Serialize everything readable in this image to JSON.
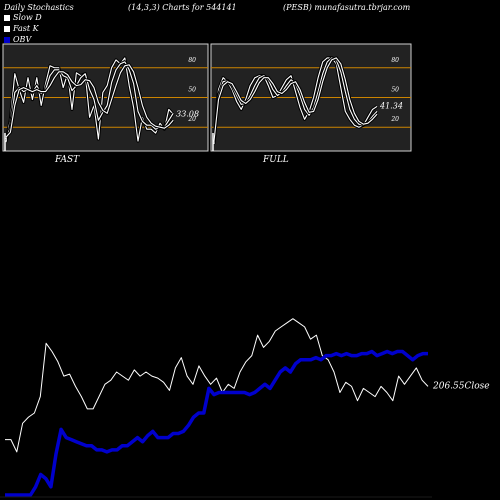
{
  "header": {
    "title": "Daily Stochastics",
    "params": "(14,3,3) Charts for 544141",
    "source": "(PESB) munafasutra.tbrjar.com"
  },
  "legend": [
    {
      "label": "Slow  D",
      "color": "#ffffff"
    },
    {
      "label": "Fast K",
      "color": "#ffffff"
    },
    {
      "label": "OBV",
      "color": "#0000cc"
    }
  ],
  "colors": {
    "grid": "#cc8400",
    "panel_bg": "#222222",
    "obv": "#0000cc",
    "price": "#ffffff"
  },
  "chart_data": [
    {
      "type": "line",
      "title": "FAST",
      "ylim": [
        0,
        100
      ],
      "yticks": [
        20,
        50,
        80
      ],
      "grid_levels": [
        20,
        50,
        80
      ],
      "last_value_label": "33.08",
      "series": [
        {
          "name": "Fast K",
          "values": [
            5,
            28,
            74,
            58,
            45,
            70,
            48,
            70,
            42,
            64,
            82,
            80,
            80,
            60,
            74,
            38,
            75,
            72,
            74,
            30,
            42,
            8,
            55,
            62,
            80,
            88,
            84,
            90,
            62,
            40,
            6,
            30,
            18,
            18,
            14,
            24,
            18,
            38,
            33
          ]
        },
        {
          "name": "Slow K",
          "values": [
            8,
            20,
            55,
            60,
            56,
            58,
            55,
            62,
            54,
            58,
            72,
            78,
            78,
            72,
            70,
            57,
            62,
            70,
            74,
            58,
            48,
            27,
            35,
            42,
            65,
            78,
            84,
            86,
            78,
            64,
            36,
            26,
            22,
            22,
            18,
            20,
            20,
            27,
            34
          ]
        },
        {
          "name": "Slow D",
          "values": [
            10,
            15,
            42,
            58,
            60,
            58,
            56,
            58,
            56,
            56,
            62,
            70,
            76,
            76,
            73,
            66,
            62,
            63,
            68,
            67,
            60,
            45,
            37,
            34,
            48,
            62,
            75,
            82,
            83,
            76,
            60,
            42,
            30,
            24,
            21,
            20,
            19,
            22,
            27
          ]
        }
      ]
    },
    {
      "type": "line",
      "title": "FULL",
      "ylim": [
        0,
        100
      ],
      "yticks": [
        20,
        50,
        80
      ],
      "grid_levels": [
        20,
        50,
        80
      ],
      "last_value_label": "41.34",
      "series": [
        {
          "name": "Full K",
          "values": [
            3,
            58,
            70,
            66,
            58,
            46,
            38,
            48,
            62,
            70,
            72,
            72,
            62,
            50,
            52,
            60,
            68,
            72,
            56,
            40,
            28,
            36,
            50,
            70,
            86,
            90,
            90,
            84,
            60,
            36,
            28,
            22,
            20,
            22,
            30,
            38,
            41
          ]
        },
        {
          "name": "Full D",
          "values": [
            5,
            52,
            66,
            67,
            62,
            52,
            43,
            44,
            52,
            62,
            70,
            72,
            68,
            58,
            52,
            55,
            62,
            68,
            64,
            52,
            38,
            32,
            40,
            56,
            74,
            86,
            90,
            88,
            76,
            56,
            38,
            28,
            23,
            22,
            25,
            31,
            36
          ]
        },
        {
          "name": "Full D2",
          "values": [
            6,
            48,
            62,
            66,
            64,
            56,
            47,
            44,
            48,
            56,
            65,
            70,
            70,
            64,
            56,
            54,
            58,
            64,
            66,
            58,
            45,
            35,
            36,
            48,
            66,
            80,
            88,
            90,
            84,
            68,
            48,
            34,
            26,
            23,
            24,
            28,
            33
          ]
        }
      ]
    },
    {
      "type": "line",
      "last_value_label": "206.55Close",
      "series": [
        {
          "name": "Close",
          "values": [
            0.27,
            0.27,
            0.21,
            0.35,
            0.38,
            0.4,
            0.48,
            0.74,
            0.7,
            0.65,
            0.58,
            0.59,
            0.53,
            0.48,
            0.42,
            0.42,
            0.48,
            0.54,
            0.56,
            0.6,
            0.58,
            0.56,
            0.61,
            0.58,
            0.6,
            0.58,
            0.57,
            0.55,
            0.51,
            0.62,
            0.67,
            0.58,
            0.54,
            0.63,
            0.58,
            0.54,
            0.57,
            0.5,
            0.54,
            0.52,
            0.6,
            0.65,
            0.68,
            0.78,
            0.72,
            0.75,
            0.8,
            0.82,
            0.84,
            0.86,
            0.84,
            0.82,
            0.76,
            0.78,
            0.68,
            0.66,
            0.6,
            0.5,
            0.55,
            0.53,
            0.46,
            0.52,
            0.5,
            0.48,
            0.53,
            0.5,
            0.46,
            0.58,
            0.54,
            0.58,
            0.62,
            0.56,
            0.53
          ]
        },
        {
          "name": "OBV",
          "values": [
            0.0,
            0.0,
            0.0,
            0.0,
            0.0,
            0.0,
            0.04,
            0.1,
            0.08,
            0.04,
            0.2,
            0.32,
            0.28,
            0.27,
            0.26,
            0.25,
            0.24,
            0.24,
            0.22,
            0.22,
            0.21,
            0.22,
            0.22,
            0.24,
            0.24,
            0.26,
            0.28,
            0.26,
            0.29,
            0.31,
            0.28,
            0.28,
            0.28,
            0.3,
            0.3,
            0.31,
            0.34,
            0.38,
            0.4,
            0.4,
            0.52,
            0.49,
            0.5,
            0.5,
            0.5,
            0.5,
            0.5,
            0.5,
            0.49,
            0.5,
            0.52,
            0.54,
            0.52,
            0.56,
            0.6,
            0.62,
            0.6,
            0.64,
            0.66,
            0.66,
            0.66,
            0.67,
            0.66,
            0.68,
            0.68,
            0.69,
            0.68,
            0.69,
            0.68,
            0.68,
            0.69,
            0.69,
            0.7,
            0.68,
            0.69,
            0.7,
            0.69,
            0.7,
            0.7,
            0.68,
            0.66,
            0.68,
            0.69,
            0.69
          ]
        }
      ]
    }
  ]
}
